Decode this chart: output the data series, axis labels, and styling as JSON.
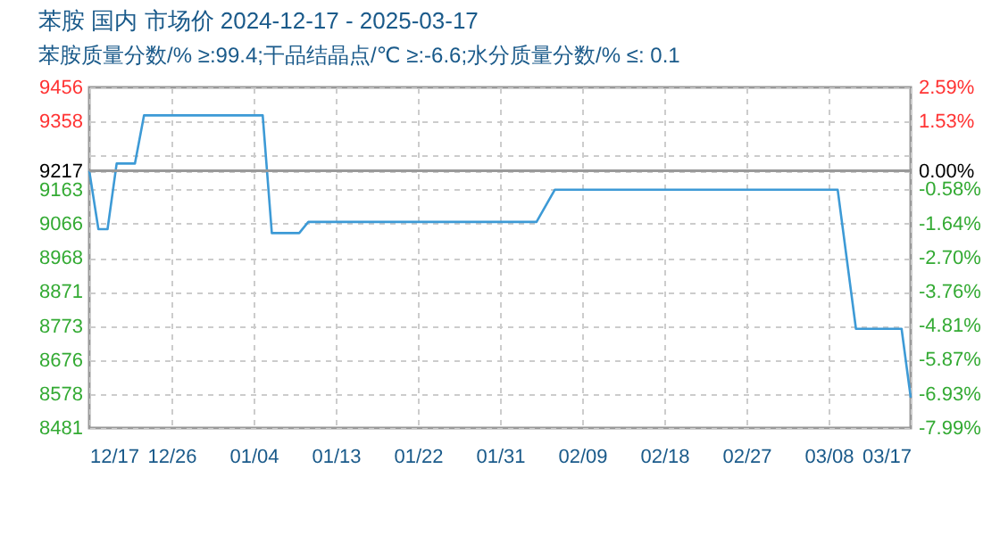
{
  "chart_data": {
    "type": "line",
    "title": "苯胺 国内 市场价 2024-12-17 - 2025-03-17",
    "subtitle": "苯胺质量分数/% ≥:99.4;干品结晶点/℃ ≥:-6.6;水分质量分数/% ≤: 0.1",
    "x": [
      "2024-12-17",
      "2024-12-18",
      "2024-12-19",
      "2024-12-20",
      "2024-12-22",
      "2024-12-23",
      "2025-01-05",
      "2025-01-06",
      "2025-01-09",
      "2025-01-10",
      "2025-02-04",
      "2025-02-06",
      "2025-03-09",
      "2025-03-11",
      "2025-03-16",
      "2025-03-17"
    ],
    "series": [
      {
        "color": "#3d9ad6",
        "values": [
          9217,
          9050,
          9050,
          9238,
          9238,
          9376,
          9376,
          9039,
          9039,
          9071,
          9071,
          9163,
          9163,
          8765,
          8765,
          8568
        ]
      }
    ],
    "xlim": [
      "2024-12-17",
      "2025-03-17"
    ],
    "xticks": [
      {
        "value": "2024-12-17",
        "label": "12/17"
      },
      {
        "value": "2024-12-26",
        "label": "12/26"
      },
      {
        "value": "2025-01-04",
        "label": "01/04"
      },
      {
        "value": "2025-01-13",
        "label": "01/13"
      },
      {
        "value": "2025-01-22",
        "label": "01/22"
      },
      {
        "value": "2025-01-31",
        "label": "01/31"
      },
      {
        "value": "2025-02-09",
        "label": "02/09"
      },
      {
        "value": "2025-02-18",
        "label": "02/18"
      },
      {
        "value": "2025-02-27",
        "label": "02/27"
      },
      {
        "value": "2025-03-08",
        "label": "03/08"
      },
      {
        "value": "2025-03-17",
        "label": "03/17"
      }
    ],
    "ylim": [
      8481,
      9456
    ],
    "yticks": [
      9456,
      9358,
      {
        "value": 9261,
        "label": null
      },
      9217,
      9163,
      9066,
      8968,
      8871,
      8773,
      8676,
      8578,
      8481
    ],
    "y2lim": [
      -7.99,
      2.59
    ],
    "y2ticks": [
      {
        "value": 2.59,
        "label": "2.59%"
      },
      {
        "value": 1.53,
        "label": "1.53%"
      },
      {
        "value": 0,
        "label": "0.00%"
      },
      {
        "value": -0.58,
        "label": "-0.58%"
      },
      {
        "value": -1.64,
        "label": "-1.64%"
      },
      {
        "value": -2.7,
        "label": "-2.70%"
      },
      {
        "value": -3.76,
        "label": "-3.76%"
      },
      {
        "value": -4.81,
        "label": "-4.81%"
      },
      {
        "value": -5.87,
        "label": "-5.87%"
      },
      {
        "value": -6.93,
        "label": "-6.93%"
      },
      {
        "value": -7.99,
        "label": "-7.99%"
      }
    ],
    "ref_lines": [
      {
        "axis": "y2",
        "value": 0,
        "color": "#999999"
      }
    ],
    "grid": true,
    "marker": "none",
    "line_style": "solid"
  }
}
